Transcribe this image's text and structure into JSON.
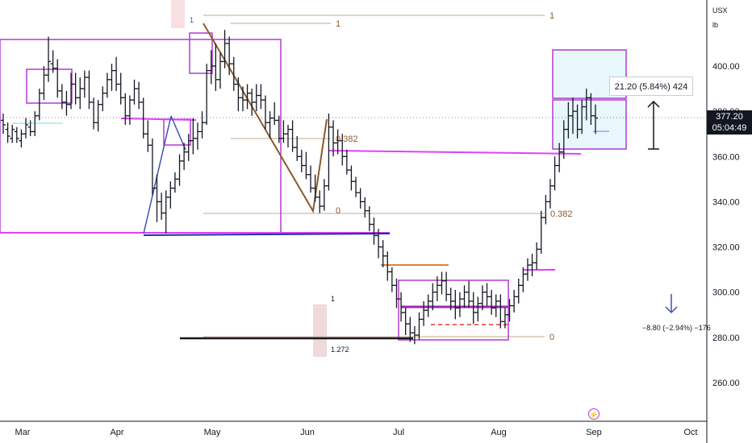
{
  "header": {
    "symbol": "USX",
    "unit": "lb"
  },
  "price_badge": {
    "price": "377.20",
    "countdown": "05:04:49"
  },
  "measure": {
    "label": "21.20 (5.84%) 424"
  },
  "down_measure": {
    "label": "−8.80 (−2.94%) −176"
  },
  "fib": {
    "top_level": "1",
    "top_level_right": "1",
    "mid_level": "0.382",
    "zero_level": "0",
    "right_level": "0.382",
    "bottom_zero": "0",
    "ext_1": "1",
    "ext_1272": "1.272",
    "start_marker": "1"
  },
  "colors": {
    "bars": "#131722",
    "box": "#b23cd1",
    "magenta_line": "#e040fb",
    "fib": "#8b5a2b",
    "blue_line": "#1f2fa8",
    "orange": "#d9823b",
    "cyan_box": "#e8f7fc",
    "axis_line": "#131722"
  },
  "chart_data": {
    "type": "ohlc",
    "title": "",
    "xlabel": "",
    "ylabel": "",
    "ylim": [
      248,
      420
    ],
    "y_ticks": [
      260,
      280,
      300,
      320,
      340,
      360,
      380,
      400
    ],
    "x_ticks": [
      "Mar",
      "Apr",
      "May",
      "Jun",
      "Jul",
      "Aug",
      "Sep",
      "Oct"
    ],
    "grid": false,
    "last_price": 377.2,
    "ohlc": [
      [
        376,
        379,
        370,
        374
      ],
      [
        372,
        375,
        366,
        369
      ],
      [
        368,
        374,
        366,
        372
      ],
      [
        371,
        373,
        366,
        368
      ],
      [
        367,
        372,
        364,
        370
      ],
      [
        370,
        377,
        368,
        374
      ],
      [
        373,
        376,
        369,
        371
      ],
      [
        371,
        380,
        369,
        378
      ],
      [
        378,
        390,
        376,
        388
      ],
      [
        388,
        400,
        385,
        396
      ],
      [
        396,
        413,
        393,
        402
      ],
      [
        401,
        407,
        397,
        399
      ],
      [
        399,
        403,
        386,
        389
      ],
      [
        389,
        392,
        381,
        384
      ],
      [
        384,
        389,
        378,
        383
      ],
      [
        383,
        397,
        381,
        392
      ],
      [
        392,
        397,
        383,
        386
      ],
      [
        386,
        395,
        381,
        390
      ],
      [
        390,
        398,
        386,
        395
      ],
      [
        395,
        398,
        381,
        384
      ],
      [
        384,
        386,
        372,
        375
      ],
      [
        375,
        385,
        371,
        383
      ],
      [
        383,
        391,
        380,
        388
      ],
      [
        388,
        397,
        386,
        394
      ],
      [
        394,
        401,
        389,
        398
      ],
      [
        398,
        404,
        389,
        392
      ],
      [
        392,
        397,
        383,
        386
      ],
      [
        386,
        388,
        374,
        378
      ],
      [
        378,
        387,
        374,
        385
      ],
      [
        385,
        394,
        383,
        390
      ],
      [
        390,
        393,
        381,
        384
      ],
      [
        384,
        386,
        368,
        370
      ],
      [
        370,
        376,
        362,
        365
      ],
      [
        365,
        368,
        343,
        346
      ],
      [
        346,
        352,
        331,
        340
      ],
      [
        340,
        344,
        332,
        335
      ],
      [
        335,
        345,
        326,
        342
      ],
      [
        342,
        349,
        337,
        346
      ],
      [
        346,
        353,
        344,
        350
      ],
      [
        350,
        361,
        347,
        358
      ],
      [
        358,
        366,
        354,
        362
      ],
      [
        362,
        370,
        358,
        367
      ],
      [
        367,
        377,
        361,
        368
      ],
      [
        368,
        375,
        363,
        371
      ],
      [
        371,
        380,
        368,
        375
      ],
      [
        375,
        401,
        374,
        398
      ],
      [
        398,
        407,
        392,
        400
      ],
      [
        400,
        410,
        389,
        394
      ],
      [
        394,
        406,
        390,
        402
      ],
      [
        402,
        416,
        399,
        410
      ],
      [
        410,
        413,
        396,
        401
      ],
      [
        401,
        404,
        389,
        392
      ],
      [
        392,
        395,
        380,
        386
      ],
      [
        386,
        391,
        380,
        385
      ],
      [
        385,
        392,
        381,
        388
      ],
      [
        388,
        390,
        378,
        384
      ],
      [
        384,
        392,
        380,
        387
      ],
      [
        387,
        392,
        381,
        385
      ],
      [
        385,
        387,
        372,
        375
      ],
      [
        375,
        380,
        368,
        377
      ],
      [
        377,
        384,
        374,
        376
      ],
      [
        376,
        378,
        366,
        368
      ],
      [
        368,
        376,
        366,
        370
      ],
      [
        370,
        374,
        364,
        372
      ],
      [
        372,
        376,
        362,
        364
      ],
      [
        364,
        369,
        358,
        360
      ],
      [
        360,
        363,
        353,
        356
      ],
      [
        356,
        362,
        350,
        352
      ],
      [
        352,
        356,
        344,
        346
      ],
      [
        346,
        352,
        340,
        342
      ],
      [
        342,
        345,
        335,
        338
      ],
      [
        338,
        350,
        336,
        347
      ],
      [
        347,
        379,
        345,
        373
      ],
      [
        373,
        376,
        360,
        366
      ],
      [
        366,
        372,
        361,
        367
      ],
      [
        367,
        370,
        356,
        360
      ],
      [
        360,
        363,
        352,
        354
      ],
      [
        354,
        356,
        345,
        349
      ],
      [
        349,
        351,
        342,
        344
      ],
      [
        344,
        346,
        337,
        340
      ],
      [
        340,
        342,
        333,
        336
      ],
      [
        336,
        338,
        327,
        330
      ],
      [
        330,
        333,
        321,
        325
      ],
      [
        325,
        328,
        315,
        320
      ],
      [
        320,
        323,
        311,
        316
      ],
      [
        316,
        318,
        305,
        309
      ],
      [
        309,
        311,
        300,
        303
      ],
      [
        303,
        306,
        293,
        297
      ],
      [
        297,
        300,
        287,
        291
      ],
      [
        291,
        293,
        281,
        286
      ],
      [
        286,
        289,
        278,
        282
      ],
      [
        282,
        285,
        277,
        281
      ],
      [
        281,
        291,
        279,
        288
      ],
      [
        288,
        296,
        285,
        292
      ],
      [
        292,
        299,
        289,
        296
      ],
      [
        296,
        304,
        292,
        300
      ],
      [
        300,
        307,
        296,
        303
      ],
      [
        303,
        309,
        299,
        305
      ],
      [
        305,
        309,
        296,
        299
      ],
      [
        299,
        302,
        292,
        296
      ],
      [
        296,
        301,
        288,
        293
      ],
      [
        293,
        300,
        289,
        297
      ],
      [
        297,
        303,
        293,
        300
      ],
      [
        300,
        305,
        293,
        296
      ],
      [
        296,
        300,
        286,
        291
      ],
      [
        291,
        298,
        287,
        295
      ],
      [
        295,
        303,
        292,
        300
      ],
      [
        300,
        304,
        294,
        298
      ],
      [
        298,
        301,
        290,
        293
      ],
      [
        293,
        299,
        289,
        296
      ],
      [
        296,
        299,
        284,
        287
      ],
      [
        287,
        293,
        284,
        290
      ],
      [
        290,
        297,
        287,
        294
      ],
      [
        294,
        301,
        291,
        298
      ],
      [
        298,
        306,
        295,
        303
      ],
      [
        303,
        311,
        300,
        308
      ],
      [
        308,
        315,
        305,
        312
      ],
      [
        312,
        317,
        307,
        313
      ],
      [
        313,
        322,
        310,
        319
      ],
      [
        319,
        336,
        317,
        333
      ],
      [
        333,
        343,
        330,
        340
      ],
      [
        340,
        350,
        337,
        347
      ],
      [
        347,
        360,
        345,
        356
      ],
      [
        356,
        366,
        353,
        362
      ],
      [
        362,
        376,
        359,
        372
      ],
      [
        372,
        384,
        368,
        378
      ],
      [
        378,
        386,
        370,
        380
      ],
      [
        380,
        383,
        368,
        372
      ],
      [
        372,
        385,
        370,
        382
      ],
      [
        382,
        390,
        376,
        386
      ],
      [
        386,
        388,
        374,
        378
      ],
      [
        378,
        383,
        370,
        377
      ]
    ]
  }
}
